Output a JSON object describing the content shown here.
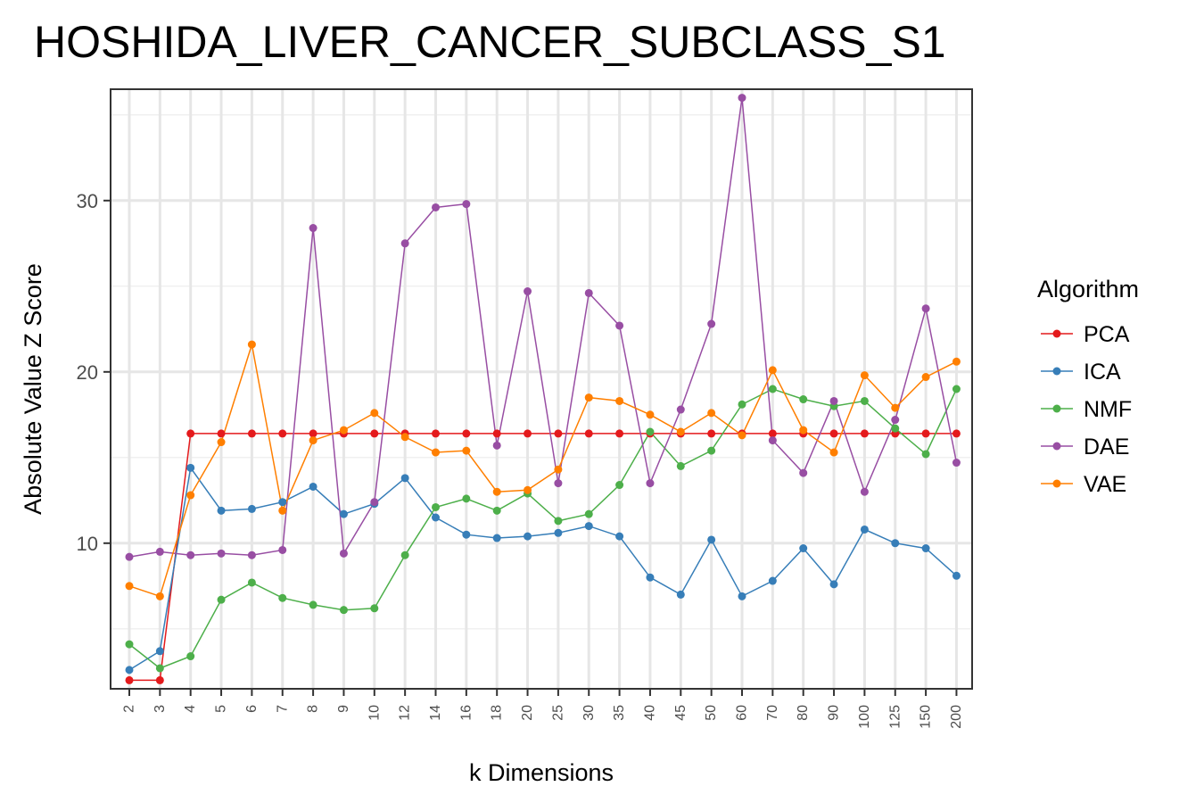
{
  "chart_data": {
    "type": "line",
    "title": "HOSHIDA_LIVER_CANCER_SUBCLASS_S1",
    "xlabel": "k Dimensions",
    "ylabel": "Absolute Value Z Score",
    "categories": [
      "2",
      "3",
      "4",
      "5",
      "6",
      "7",
      "8",
      "9",
      "10",
      "12",
      "14",
      "16",
      "18",
      "20",
      "25",
      "30",
      "35",
      "40",
      "45",
      "50",
      "60",
      "70",
      "80",
      "90",
      "100",
      "125",
      "150",
      "200"
    ],
    "yticks": [
      10,
      20,
      30
    ],
    "ylim": [
      1.5,
      36.5
    ],
    "grid": true,
    "legend": {
      "title": "Algorithm",
      "position": "right"
    },
    "series": [
      {
        "name": "PCA",
        "color": "#E41A1C",
        "values": [
          2.0,
          2.0,
          16.4,
          16.4,
          16.4,
          16.4,
          16.4,
          16.4,
          16.4,
          16.4,
          16.4,
          16.4,
          16.4,
          16.4,
          16.4,
          16.4,
          16.4,
          16.4,
          16.4,
          16.4,
          16.4,
          16.4,
          16.4,
          16.4,
          16.4,
          16.4,
          16.4,
          16.4
        ]
      },
      {
        "name": "ICA",
        "color": "#377EB8",
        "values": [
          2.6,
          3.7,
          14.4,
          11.9,
          12.0,
          12.4,
          13.3,
          11.7,
          12.3,
          13.8,
          11.5,
          10.5,
          10.3,
          10.4,
          10.6,
          11.0,
          10.4,
          8.0,
          7.0,
          10.2,
          6.9,
          7.8,
          9.7,
          7.6,
          10.8,
          10.0,
          9.7,
          8.1
        ]
      },
      {
        "name": "NMF",
        "color": "#4DAF4A",
        "values": [
          4.1,
          2.7,
          3.4,
          6.7,
          7.7,
          6.8,
          6.4,
          6.1,
          6.2,
          9.3,
          12.1,
          12.6,
          11.9,
          12.9,
          11.3,
          11.7,
          13.4,
          16.5,
          14.5,
          15.4,
          18.1,
          19.0,
          18.4,
          18.0,
          18.3,
          16.7,
          15.2,
          19.0
        ]
      },
      {
        "name": "DAE",
        "color": "#984EA3",
        "values": [
          9.2,
          9.5,
          9.3,
          9.4,
          9.3,
          9.6,
          28.4,
          9.4,
          12.4,
          27.5,
          29.6,
          29.8,
          15.7,
          24.7,
          13.5,
          24.6,
          22.7,
          13.5,
          17.8,
          22.8,
          36.0,
          16.0,
          14.1,
          18.3,
          13.0,
          17.2,
          23.7,
          14.7
        ]
      },
      {
        "name": "VAE",
        "color": "#FF7F00",
        "values": [
          7.5,
          6.9,
          12.8,
          15.9,
          21.6,
          11.9,
          16.0,
          16.6,
          17.6,
          16.2,
          15.3,
          15.4,
          13.0,
          13.1,
          14.3,
          18.5,
          18.3,
          17.5,
          16.5,
          17.6,
          16.3,
          20.1,
          16.6,
          15.3,
          19.8,
          17.9,
          19.7,
          20.6
        ]
      }
    ]
  }
}
